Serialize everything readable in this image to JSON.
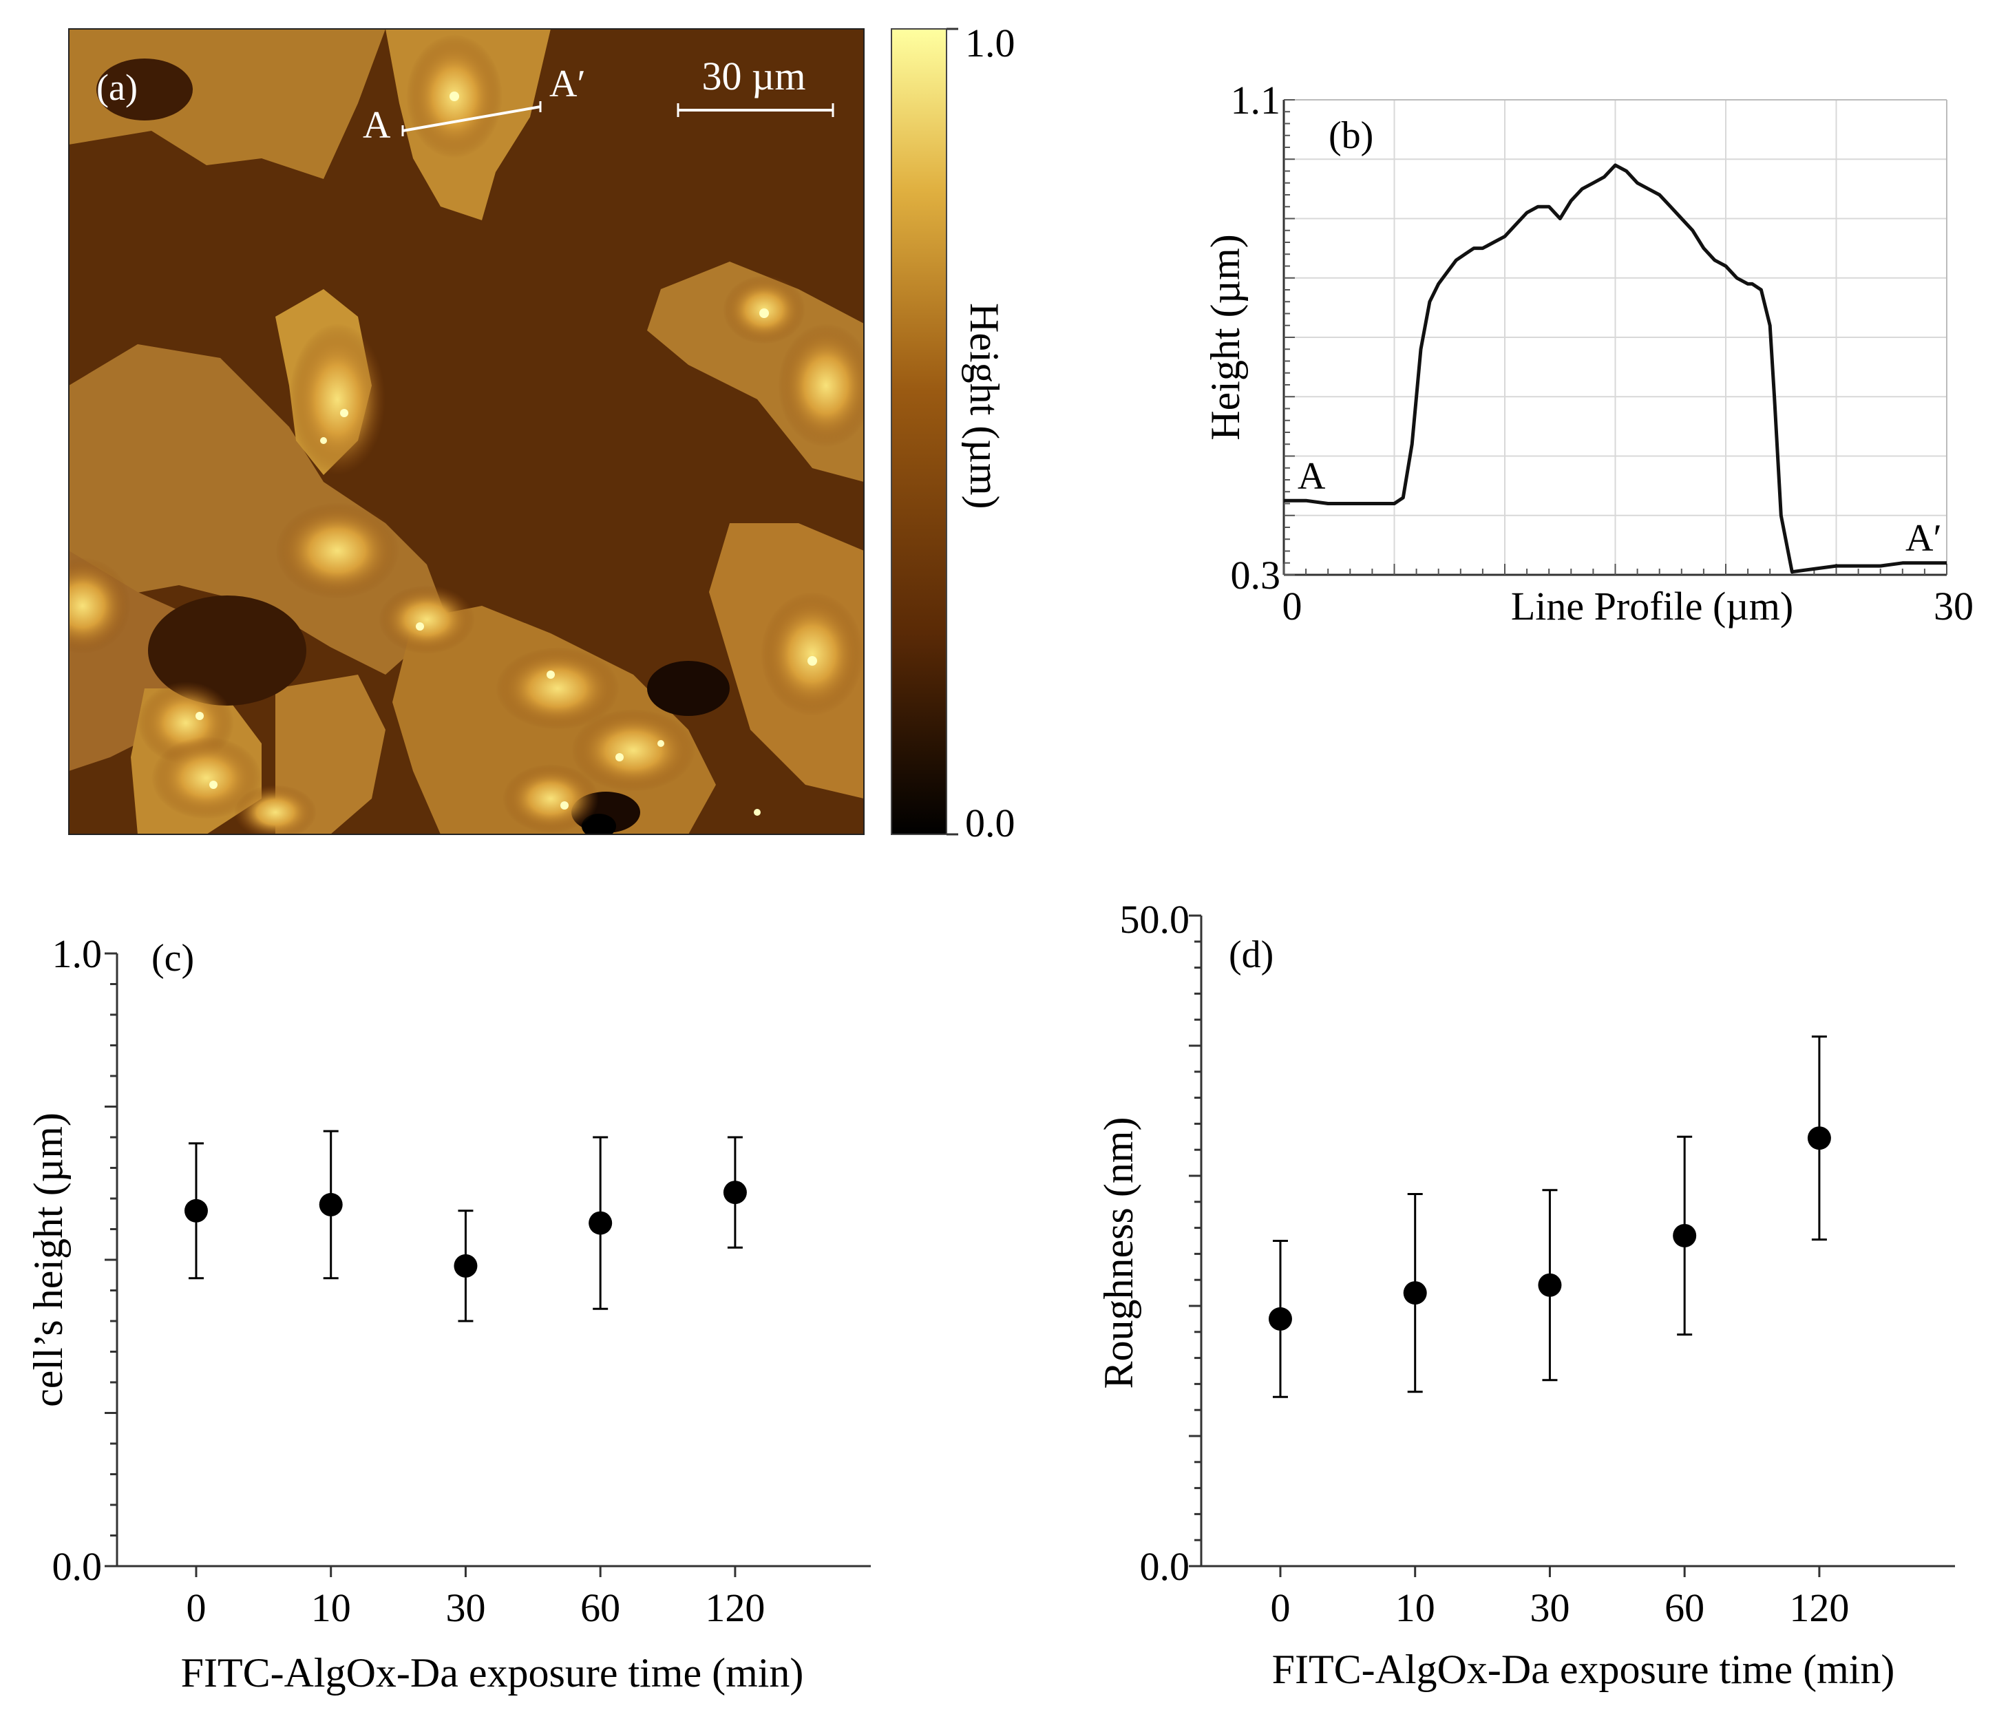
{
  "chart_data": [
    {
      "panel": "a",
      "type": "heatmap",
      "panel_label": "(a)",
      "scale_bar_label": "30 µm",
      "marker_start": "A",
      "marker_end": "A′",
      "colorbar": {
        "label": "Height (µm)",
        "max_label": "1.0",
        "min_label": "0.0",
        "range": [
          0.0,
          1.0
        ],
        "colors": [
          "#000000",
          "#5a2a06",
          "#9a5a12",
          "#e0b040",
          "#ffffa0"
        ]
      }
    },
    {
      "panel": "b",
      "type": "line",
      "panel_label": "(b)",
      "xlabel": "Line Profile (µm)",
      "ylabel": "Height (µm)",
      "xlim": [
        0,
        30
      ],
      "ylim": [
        0.3,
        1.1
      ],
      "xtick_labels": [
        "0",
        "30"
      ],
      "ytick_labels": [
        "1.1",
        "0.3"
      ],
      "start_label": "A",
      "end_label": "A′",
      "x": [
        0,
        1,
        2,
        3,
        4,
        5,
        5.4,
        5.8,
        6.2,
        6.6,
        7.0,
        7.4,
        7.8,
        8.2,
        8.6,
        9.0,
        9.5,
        10.0,
        10.5,
        11.0,
        11.5,
        12.0,
        12.5,
        13.0,
        13.5,
        14.0,
        14.5,
        15.0,
        15.5,
        16.0,
        16.5,
        17.0,
        17.5,
        18.0,
        18.5,
        19.0,
        19.5,
        20.0,
        20.5,
        21.0,
        21.2,
        21.6,
        22.0,
        22.2,
        22.5,
        23.0,
        24,
        25,
        26,
        27,
        28,
        29,
        30
      ],
      "y": [
        0.425,
        0.425,
        0.42,
        0.42,
        0.42,
        0.42,
        0.43,
        0.52,
        0.68,
        0.76,
        0.79,
        0.81,
        0.83,
        0.84,
        0.85,
        0.85,
        0.86,
        0.87,
        0.89,
        0.91,
        0.92,
        0.92,
        0.9,
        0.93,
        0.95,
        0.96,
        0.97,
        0.99,
        0.98,
        0.96,
        0.95,
        0.94,
        0.92,
        0.9,
        0.88,
        0.85,
        0.83,
        0.82,
        0.8,
        0.79,
        0.79,
        0.78,
        0.72,
        0.6,
        0.4,
        0.305,
        0.31,
        0.315,
        0.315,
        0.315,
        0.32,
        0.32,
        0.32
      ]
    },
    {
      "panel": "c",
      "type": "scatter",
      "panel_label": "(c)",
      "xlabel": "FITC-AlgOx-Da exposure time (min)",
      "ylabel": "cell’s height (µm)",
      "categories": [
        "0",
        "10",
        "30",
        "60",
        "120"
      ],
      "values": [
        0.58,
        0.59,
        0.49,
        0.56,
        0.61
      ],
      "errors": [
        0.11,
        0.12,
        0.09,
        0.14,
        0.09
      ],
      "ylim": [
        0.0,
        1.0
      ],
      "ytick_labels": [
        "1.0",
        "0.0"
      ]
    },
    {
      "panel": "d",
      "type": "scatter",
      "panel_label": "(d)",
      "xlabel": "FITC-AlgOx-Da exposure time (min)",
      "ylabel": "Roughness (nm)",
      "categories": [
        "0",
        "10",
        "30",
        "60",
        "120"
      ],
      "values": [
        19.0,
        21.0,
        21.6,
        25.4,
        32.9
      ],
      "errors": [
        6.0,
        7.6,
        7.3,
        7.6,
        7.8
      ],
      "ylim": [
        0.0,
        50.0
      ],
      "ytick_labels": [
        "50.0",
        "0.0"
      ]
    }
  ]
}
